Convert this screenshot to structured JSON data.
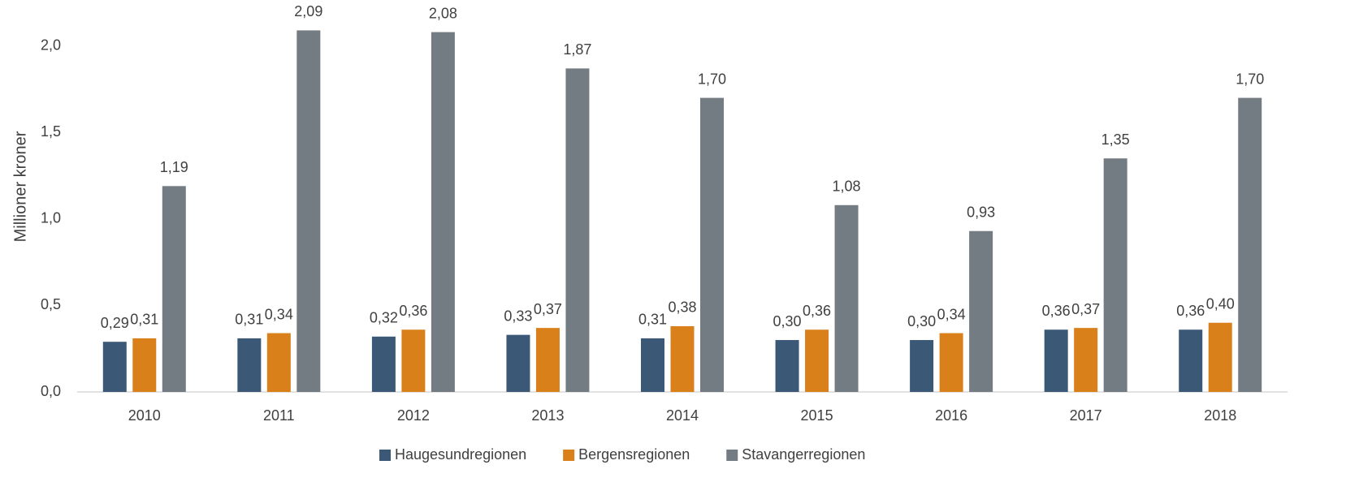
{
  "chart_data": {
    "type": "bar",
    "y_label": "Millioner kroner",
    "categories": [
      "2010",
      "2011",
      "2012",
      "2013",
      "2014",
      "2015",
      "2016",
      "2017",
      "2018"
    ],
    "series": [
      {
        "name": "Haugesundregionen",
        "color": "#3b5877",
        "values": [
          0.29,
          0.31,
          0.32,
          0.33,
          0.31,
          0.3,
          0.3,
          0.36,
          0.36
        ],
        "value_labels": [
          "0,29",
          "0,31",
          "0,32",
          "0,33",
          "0,31",
          "0,30",
          "0,30",
          "0,36",
          "0,36"
        ]
      },
      {
        "name": "Bergensregionen",
        "color": "#d9801b",
        "values": [
          0.31,
          0.34,
          0.36,
          0.37,
          0.38,
          0.36,
          0.34,
          0.37,
          0.4
        ],
        "value_labels": [
          "0,31",
          "0,34",
          "0,36",
          "0,37",
          "0,38",
          "0,36",
          "0,34",
          "0,37",
          "0,40"
        ]
      },
      {
        "name": "Stavangerregionen",
        "color": "#737b83",
        "values": [
          1.19,
          2.09,
          2.08,
          1.87,
          1.7,
          1.08,
          0.93,
          1.35,
          1.7
        ],
        "value_labels": [
          "1,19",
          "2,09",
          "2,08",
          "1,87",
          "1,70",
          "1,08",
          "0,93",
          "1,35",
          "1,70"
        ]
      }
    ],
    "ylim": [
      0,
      2.2
    ],
    "yticks": [
      {
        "value": 0,
        "label": "0,0"
      },
      {
        "value": 0.5,
        "label": "0,5"
      },
      {
        "value": 1,
        "label": "1,0"
      },
      {
        "value": 1.5,
        "label": "1,5"
      },
      {
        "value": 2,
        "label": "2,0"
      }
    ],
    "grid": false,
    "legend": "bottom"
  }
}
